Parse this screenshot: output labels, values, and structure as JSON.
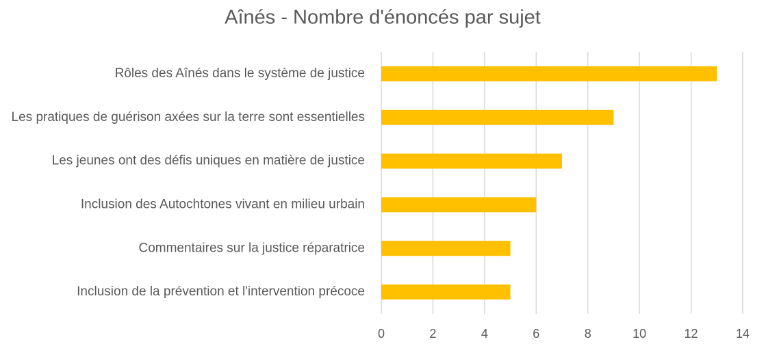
{
  "chart_data": {
    "type": "hbar",
    "title": "Aînés - Nombre d'énoncés par sujet",
    "categories": [
      "Rôles des Aînés dans le système de justice",
      "Les pratiques de guérison axées sur la terre sont essentielles",
      "Les jeunes ont des défis uniques en matière de justice",
      "Inclusion des Autochtones vivant en milieu urbain",
      "Commentaires sur la justice réparatrice",
      "Inclusion de la prévention et l'intervention précoce"
    ],
    "values": [
      13,
      9,
      7,
      6,
      5,
      5
    ],
    "color": "#ffc000",
    "xlim": [
      0,
      14
    ],
    "xticks": [
      0,
      2,
      4,
      6,
      8,
      10,
      12,
      14
    ],
    "grid": true
  }
}
